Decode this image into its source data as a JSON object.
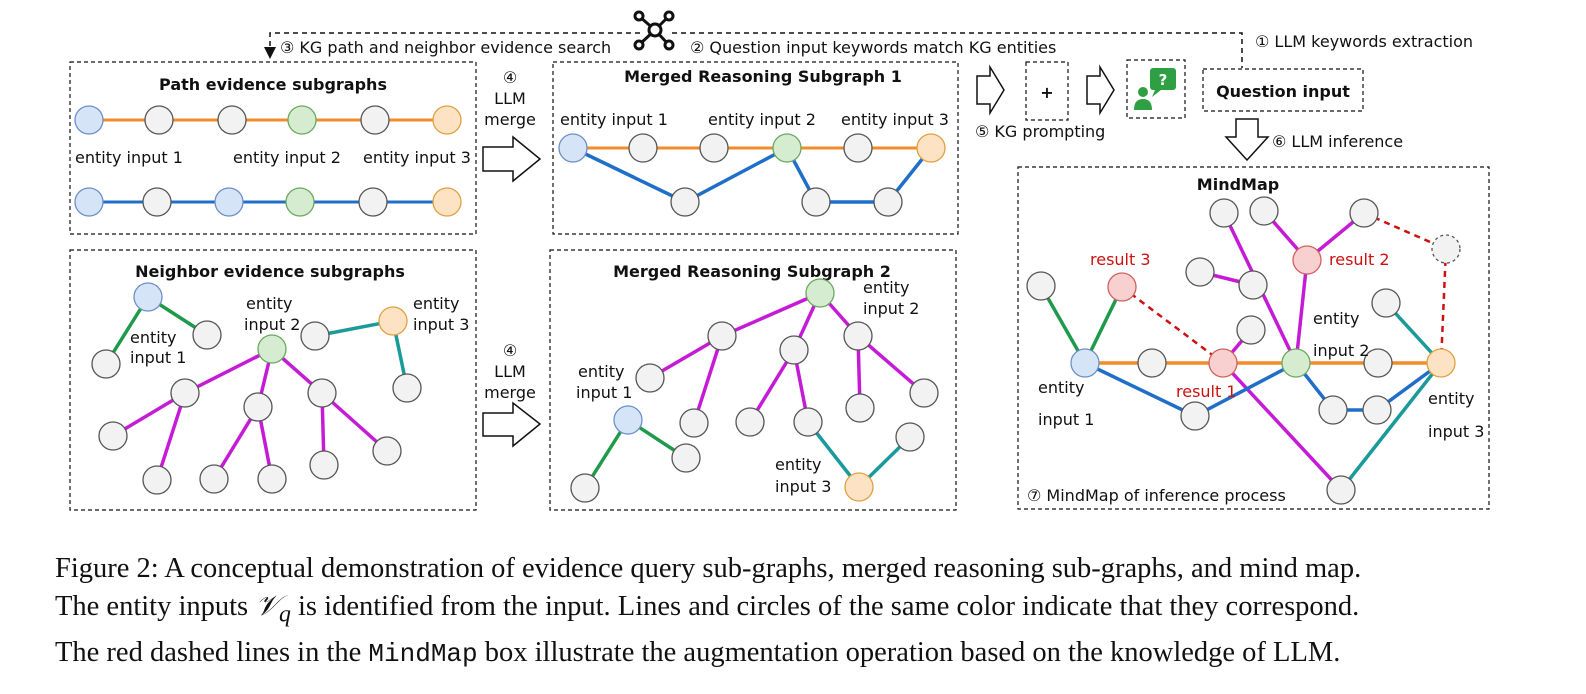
{
  "labels": {
    "step1": "① LLM keywords extraction",
    "step2": "② Question input keywords match KG entities",
    "step3": "③ KG path and neighbor evidence search",
    "step4_llm": "LLM",
    "step4_merge": "merge",
    "step4_num": "④",
    "step5": "⑤ KG prompting",
    "step6": "⑥ LLM inference",
    "step7": "⑦ MindMap of inference process",
    "plus": "+",
    "question_input": "Question input"
  },
  "boxes": {
    "path_title": "Path evidence subgraphs",
    "neighbor_title": "Neighbor evidence subgraphs",
    "merged1_title": "Merged Reasoning Subgraph 1",
    "merged2_title": "Merged Reasoning Subgraph 2",
    "mindmap_title": "MindMap"
  },
  "entities": {
    "e1": "entity input 1",
    "e2": "entity input 2",
    "e3": "entity input 3",
    "entity": "entity",
    "input1": "input 1",
    "input2": "input 2",
    "input3": "input 3"
  },
  "results": {
    "r1": "result 1",
    "r2": "result 2",
    "r3": "result 3"
  },
  "caption": {
    "line1": "Figure 2: A conceptual demonstration of evidence query sub-graphs, merged reasoning sub-graphs, and mind map.",
    "line2a": "The entity inputs ",
    "line2_symbol": "𝒱",
    "line2_sub": "q",
    "line2b": " is identified from the input. Lines and circles of the same color indicate that they correspond.",
    "line3a": "The red dashed lines in the ",
    "line3_mono": "MindMap",
    "line3b": " box illustrate the augmentation operation based on the knowledge of LLM."
  },
  "colors": {
    "orange": "#f28c28",
    "blue": "#1f6fc9",
    "green": "#1f9a4a",
    "magenta": "#c61bd6",
    "teal": "#1a9a9a",
    "red_dashed": "#cc1111",
    "node_gray": "#f2f2f2",
    "node_blue": "#d6e4f7",
    "node_green": "#d5ecd0",
    "node_orange": "#fde3c4",
    "node_red": "#f8d0d0"
  },
  "icons": [
    "graph-network-icon",
    "user-question-icon"
  ]
}
